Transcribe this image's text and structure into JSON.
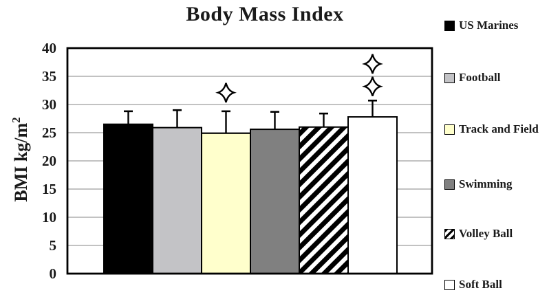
{
  "title": "Body Mass Index",
  "y_axis": {
    "label_base": "BMI kg/m",
    "label_sup": "2",
    "tick_labels": [
      "0",
      "5",
      "10",
      "15",
      "20",
      "25",
      "30",
      "35",
      "40"
    ]
  },
  "chart_data": {
    "type": "bar",
    "title": "Body Mass Index",
    "ylabel": "BMI kg/m²",
    "ylim": [
      0,
      40
    ],
    "ytick_step": 5,
    "yticks": [
      0,
      5,
      10,
      15,
      20,
      25,
      30,
      35,
      40
    ],
    "grid": true,
    "legend_position": "right",
    "error_bars": "upper",
    "significance_marker": "four-pointed-star",
    "series": [
      {
        "name": "US Marines",
        "value": 26.5,
        "error_high": 28.8,
        "fill": "#000000",
        "pattern": "solid",
        "star_values": []
      },
      {
        "name": "Football",
        "value": 25.9,
        "error_high": 29.0,
        "fill": "#c3c3c6",
        "pattern": "solid",
        "star_values": []
      },
      {
        "name": "Track and Field",
        "value": 24.9,
        "error_high": 28.8,
        "fill": "#ffffcc",
        "pattern": "solid",
        "star_values": [
          32.1
        ]
      },
      {
        "name": "Swimming",
        "value": 25.6,
        "error_high": 28.7,
        "fill": "#808080",
        "pattern": "solid",
        "star_values": []
      },
      {
        "name": "Volley Ball",
        "value": 26.0,
        "error_high": 28.4,
        "fill": "#ffffff",
        "pattern": "diagonal-hatch",
        "star_values": []
      },
      {
        "name": "Soft Ball",
        "value": 27.8,
        "error_high": 30.7,
        "fill": "#ffffff",
        "pattern": "solid",
        "star_values": [
          33.2,
          37.2
        ]
      }
    ]
  },
  "colors": {
    "bar_border": "#000000",
    "gridline": "#9e9e9e",
    "plot_border": "#000000",
    "text": "#1a1a1a",
    "background": "#ffffff"
  }
}
